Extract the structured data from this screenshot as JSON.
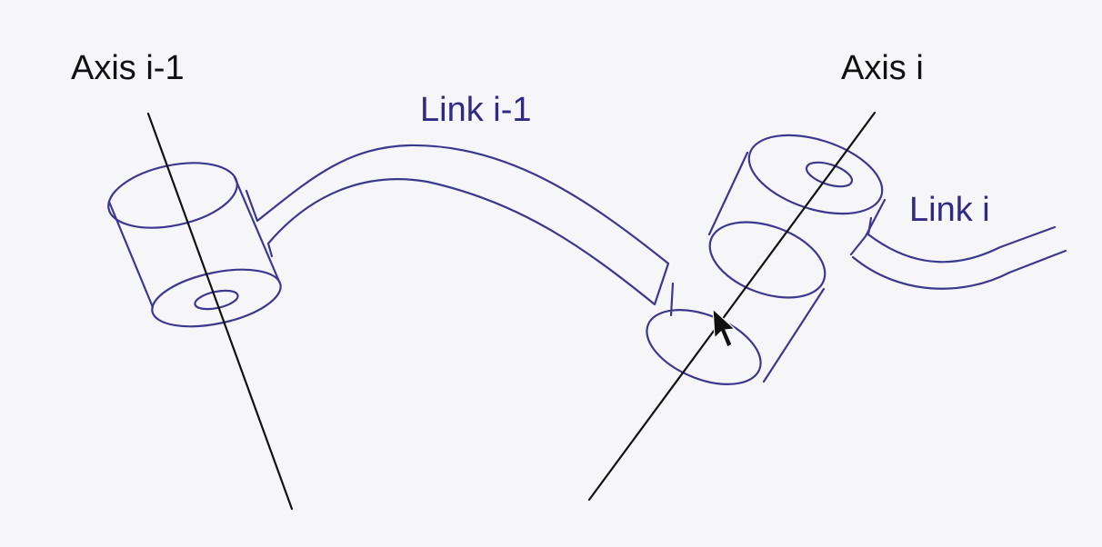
{
  "labels": {
    "axis_prev": "Axis i-1",
    "axis_curr": "Axis i",
    "link_prev": "Link i-1",
    "link_curr": "Link i"
  },
  "colors": {
    "background": "#f6f6f8",
    "axis_text": "#111111",
    "link_text": "#2e2a86",
    "link_outline": "#3b3890",
    "axis_line": "#111111"
  },
  "icons": [
    "mouse-pointer-icon"
  ]
}
